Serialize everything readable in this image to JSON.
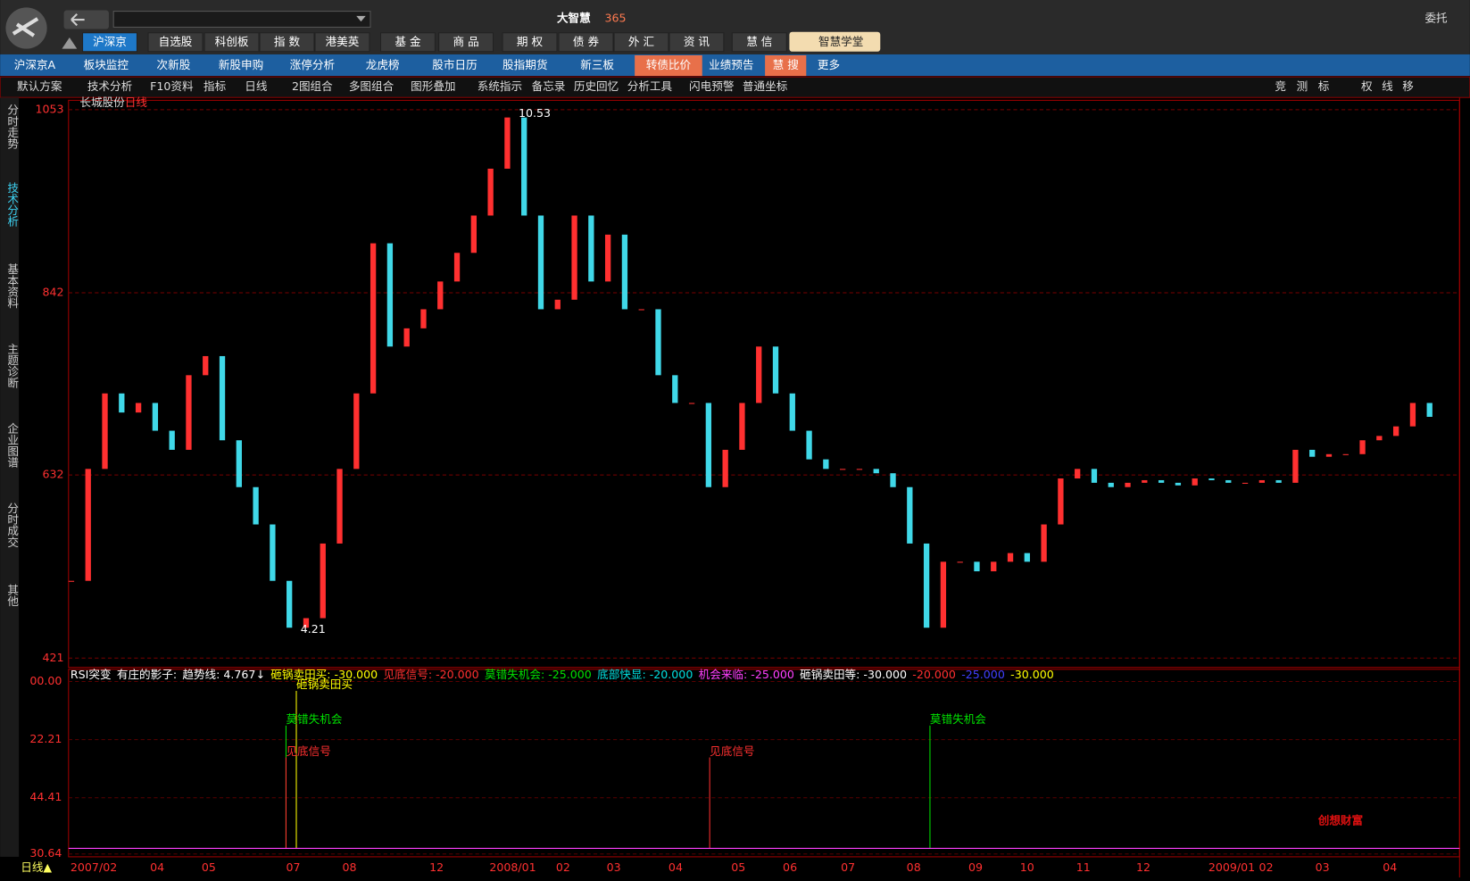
{
  "window": {
    "brand": "大智慧",
    "brand_num": "365",
    "right_label": "委托"
  },
  "main_tabs": [
    "沪深京",
    "自选股",
    "科创板",
    "指 数",
    "港美英",
    "基 金",
    "商 品",
    "期 权",
    "债 券",
    "外 汇",
    "资 讯",
    "慧 信"
  ],
  "academy": "智慧学堂",
  "sub_tabs": [
    "沪深京A",
    "板块监控",
    "次新股",
    "新股申购",
    "涨停分析",
    "龙虎榜",
    "股市日历",
    "股指期货",
    "新三板",
    "转债比价",
    "业绩预告",
    "慧 搜",
    "更多"
  ],
  "toolbar": [
    "默认方案",
    "技术分析",
    "F10资料",
    "指标",
    "日线",
    "2图组合",
    "多图组合",
    "图形叠加",
    "系统指示",
    "备忘录",
    "历史回忆",
    "分析工具",
    "闪电预警",
    "普通坐标"
  ],
  "toolbar_right": [
    "竞",
    "测",
    "标",
    "权",
    "线",
    "移"
  ],
  "sidebar": [
    "分时走势",
    "技术分析",
    "基本资料",
    "主题诊断",
    "企业图谱",
    "分时成交",
    "其他"
  ],
  "price_chart": {
    "stock": "长城股份",
    "period": "日线",
    "ylim": [
      421,
      1053
    ],
    "yticks": [
      421,
      632,
      842,
      1053
    ],
    "high_label": "10.53",
    "low_label": "4.21",
    "values": [
      510,
      639,
      726,
      704,
      715,
      683,
      661,
      747,
      769,
      672,
      618,
      575,
      510,
      456,
      467,
      553,
      639,
      726,
      899,
      780,
      801,
      823,
      855,
      888,
      931,
      985,
      1044,
      931,
      823,
      834,
      931,
      855,
      909,
      823,
      823,
      747,
      715,
      715,
      618,
      661,
      715,
      780,
      726,
      683,
      650,
      639,
      639,
      639,
      634,
      618,
      553,
      456,
      532,
      532,
      521,
      532,
      542,
      532,
      575,
      628,
      639,
      623,
      618,
      623,
      626,
      623,
      620,
      628,
      626,
      623,
      623,
      626,
      623,
      661,
      653,
      656,
      656,
      672,
      677,
      688,
      715,
      699
    ]
  },
  "indicator": {
    "legend": [
      {
        "text": "RSI突变",
        "color": "#ffffff"
      },
      {
        "text": "有庄的影子:",
        "color": "#ffffff"
      },
      {
        "text": "趋势线: 4.767↓",
        "color": "#ffffff"
      },
      {
        "text": "砸锅卖田买: -30.000",
        "color": "#ffff00"
      },
      {
        "text": "见底信号: -20.000",
        "color": "#ff3030"
      },
      {
        "text": "莫错失机会: -25.000",
        "color": "#00e000"
      },
      {
        "text": "底部快显: -20.000",
        "color": "#00e0e0"
      },
      {
        "text": "机会来临: -25.000",
        "color": "#ff40ff"
      },
      {
        "text": "砸锅卖田等: -30.000",
        "color": "#ffffff"
      },
      {
        "text": "-20.000",
        "color": "#ff3030"
      },
      {
        "text": "-25.000",
        "color": "#4040ff"
      },
      {
        "text": "-30.000",
        "color": "#ffff00"
      }
    ],
    "tick_labels": [
      "00.00",
      "22.21",
      "44.41",
      "30.64"
    ],
    "signals": [
      {
        "text": "砸锅卖田买",
        "color": "#ffff00"
      },
      {
        "text": "莫错失机会",
        "color": "#00e000"
      },
      {
        "text": "见底信号",
        "color": "#ff3030"
      },
      {
        "text": "见底信号",
        "color": "#ff3030"
      },
      {
        "text": "莫错失机会",
        "color": "#00e000"
      }
    ]
  },
  "dates": [
    "2007/02",
    "04",
    "05",
    "07",
    "08",
    "12",
    "2008/01",
    "02",
    "03",
    "04",
    "05",
    "06",
    "07",
    "08",
    "09",
    "10",
    "11",
    "12",
    "2009/01",
    "02",
    "03",
    "04"
  ],
  "period_button": "日线▲",
  "watermark": "创想财富"
}
